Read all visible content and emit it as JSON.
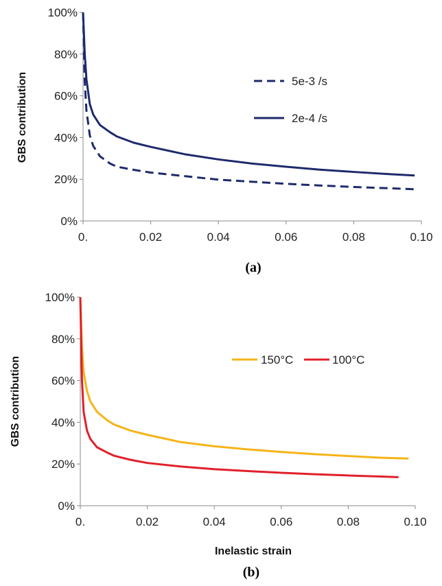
{
  "figure": {
    "panel_a_label": "(a)",
    "panel_b_label": "(b)"
  },
  "colors": {
    "navy": "#1e2a6b",
    "orange": "#f5b417",
    "red": "#e0202a",
    "axis": "#888888",
    "grid": "#d9d9d9"
  },
  "chart_data": [
    {
      "type": "line",
      "panel": "(a)",
      "title": "",
      "xlabel": "",
      "ylabel": "GBS contribution",
      "xlim": [
        0,
        0.1
      ],
      "ylim": [
        0,
        1
      ],
      "x_ticks": [
        "0.",
        "0.02",
        "0.04",
        "0.06",
        "0.08",
        "0.10"
      ],
      "y_ticks": [
        "0%",
        "20%",
        "40%",
        "60%",
        "80%",
        "100%"
      ],
      "grid": false,
      "legend_placement": "right",
      "series": [
        {
          "name": "5e-3 /s",
          "style": "dashed",
          "color": "#1e2a6b",
          "x": [
            0,
            0.0005,
            0.001,
            0.002,
            0.003,
            0.005,
            0.008,
            0.01,
            0.015,
            0.02,
            0.03,
            0.04,
            0.05,
            0.06,
            0.07,
            0.08,
            0.09,
            0.098
          ],
          "y": [
            1.0,
            0.67,
            0.53,
            0.41,
            0.36,
            0.31,
            0.275,
            0.26,
            0.245,
            0.232,
            0.215,
            0.198,
            0.188,
            0.178,
            0.17,
            0.163,
            0.157,
            0.152
          ]
        },
        {
          "name": "2e-4 /s",
          "style": "solid",
          "color": "#1e2a6b",
          "x": [
            0,
            0.0005,
            0.001,
            0.002,
            0.003,
            0.005,
            0.008,
            0.01,
            0.015,
            0.02,
            0.03,
            0.04,
            0.05,
            0.06,
            0.07,
            0.08,
            0.09,
            0.098
          ],
          "y": [
            1.0,
            0.8,
            0.68,
            0.56,
            0.51,
            0.46,
            0.425,
            0.405,
            0.375,
            0.355,
            0.32,
            0.295,
            0.275,
            0.26,
            0.246,
            0.235,
            0.225,
            0.218
          ]
        }
      ]
    },
    {
      "type": "line",
      "panel": "(b)",
      "title": "",
      "xlabel": "Inelastic strain",
      "ylabel": "GBS contribution",
      "xlim": [
        0,
        0.1
      ],
      "ylim": [
        0,
        1
      ],
      "x_ticks": [
        "0.",
        "0.02",
        "0.04",
        "0.06",
        "0.08",
        "0.10"
      ],
      "y_ticks": [
        "0%",
        "20%",
        "40%",
        "60%",
        "80%",
        "100%"
      ],
      "grid": false,
      "legend_placement": "top-right",
      "series": [
        {
          "name": "150°C",
          "style": "solid",
          "color": "#f5b417",
          "x": [
            0,
            0.0005,
            0.001,
            0.002,
            0.003,
            0.005,
            0.008,
            0.01,
            0.015,
            0.02,
            0.03,
            0.04,
            0.05,
            0.06,
            0.07,
            0.08,
            0.09,
            0.098
          ],
          "y": [
            1.0,
            0.76,
            0.64,
            0.55,
            0.5,
            0.45,
            0.41,
            0.39,
            0.36,
            0.34,
            0.305,
            0.285,
            0.27,
            0.258,
            0.247,
            0.238,
            0.23,
            0.226
          ]
        },
        {
          "name": "100°C",
          "style": "solid",
          "color": "#e0202a",
          "x": [
            0,
            0.0005,
            0.001,
            0.002,
            0.003,
            0.005,
            0.008,
            0.01,
            0.015,
            0.02,
            0.03,
            0.04,
            0.05,
            0.06,
            0.07,
            0.08,
            0.09,
            0.095
          ],
          "y": [
            1.0,
            0.6,
            0.45,
            0.36,
            0.32,
            0.28,
            0.255,
            0.24,
            0.22,
            0.205,
            0.188,
            0.175,
            0.166,
            0.158,
            0.151,
            0.145,
            0.14,
            0.137
          ]
        }
      ]
    }
  ]
}
